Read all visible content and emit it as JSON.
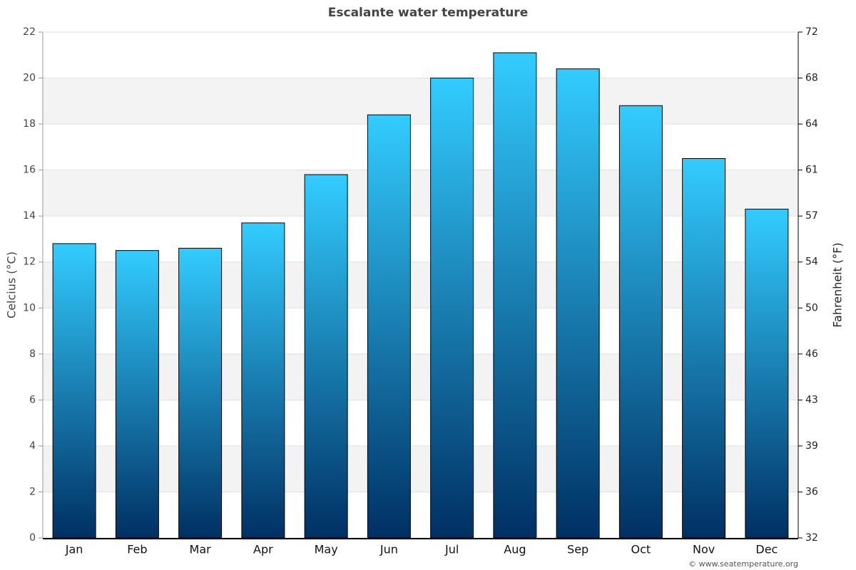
{
  "chart_data": {
    "type": "bar",
    "title": "Escalante water temperature",
    "y_label": "Celcius (°C)",
    "y2_label": "Fahrenheit (°F)",
    "categories": [
      "Jan",
      "Feb",
      "Mar",
      "Apr",
      "May",
      "Jun",
      "Jul",
      "Aug",
      "Sep",
      "Oct",
      "Nov",
      "Dec"
    ],
    "values": [
      12.8,
      12.5,
      12.6,
      13.7,
      15.8,
      18.4,
      20.0,
      21.1,
      20.4,
      18.8,
      16.5,
      14.3
    ],
    "gradient": [
      "#33ccff",
      "#003063"
    ],
    "ylim": [
      0,
      22
    ],
    "yticks": [
      0,
      2,
      4,
      6,
      8,
      10,
      12,
      14,
      16,
      18,
      20,
      22
    ],
    "y2lim": [
      32,
      71.6
    ],
    "y2ticks": [
      32,
      {
        "value": 35.6,
        "label": "36"
      },
      {
        "value": 39.2,
        "label": "39"
      },
      {
        "value": 42.8,
        "label": "43"
      },
      {
        "value": 46.4,
        "label": "46"
      },
      50,
      {
        "value": 53.6,
        "label": "54"
      },
      {
        "value": 57.2,
        "label": "57"
      },
      {
        "value": 60.8,
        "label": "61"
      },
      {
        "value": 64.4,
        "label": "64"
      },
      68,
      {
        "value": 71.6,
        "label": "72"
      }
    ],
    "grid": true,
    "source": "© www.seatemperature.org"
  }
}
